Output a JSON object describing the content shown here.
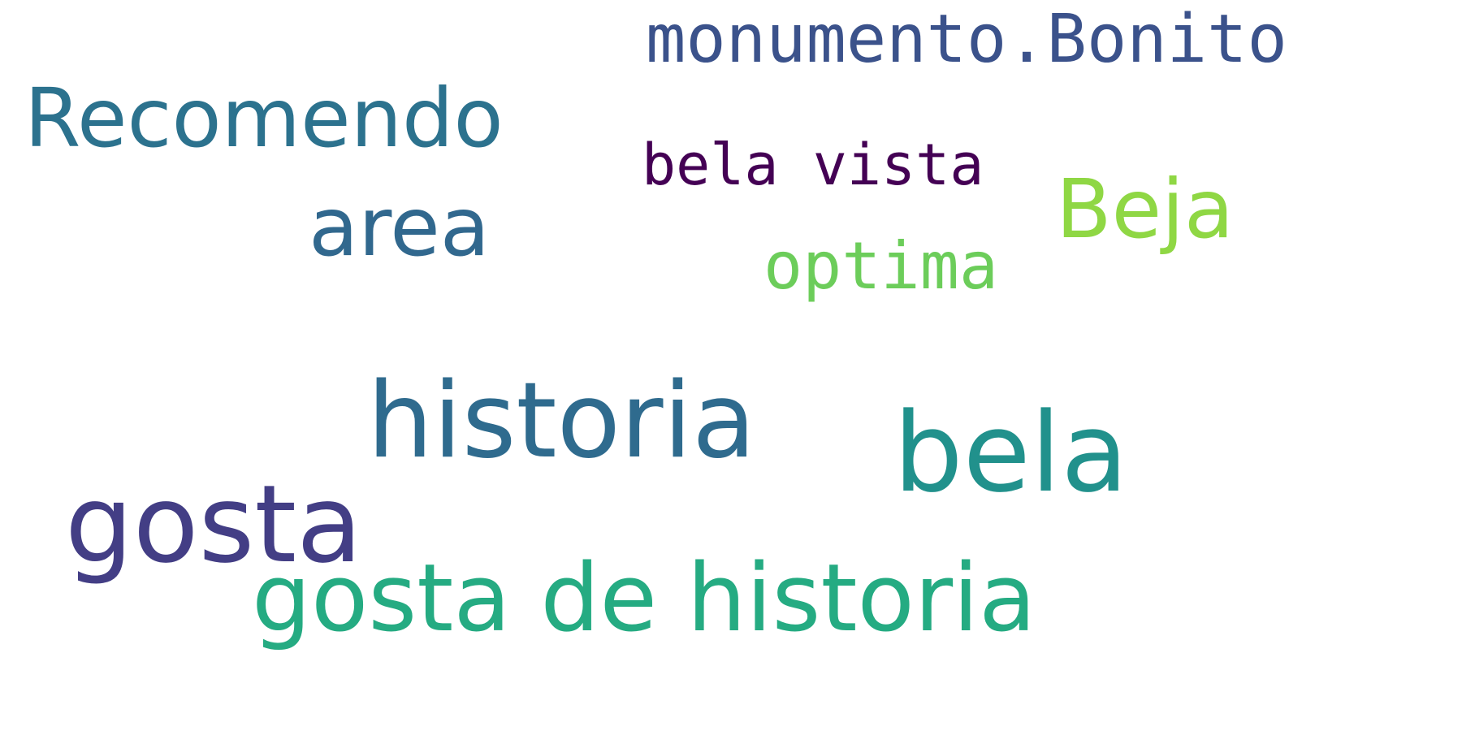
{
  "wordcloud": {
    "words": [
      {
        "id": "monumento",
        "text": "monumento.Bonito",
        "color": "#3b528b"
      },
      {
        "id": "recomendo",
        "text": "Recomendo",
        "color": "#2c728e"
      },
      {
        "id": "bela_vista",
        "text": "bela vista",
        "color": "#440154"
      },
      {
        "id": "area",
        "text": "area",
        "color": "#31688e"
      },
      {
        "id": "beja",
        "text": "Beja",
        "color": "#8fd744"
      },
      {
        "id": "optima",
        "text": "optima",
        "color": "#6ccd5a"
      },
      {
        "id": "historia",
        "text": "historia",
        "color": "#2f6b8e"
      },
      {
        "id": "bela",
        "text": "bela",
        "color": "#21918c"
      },
      {
        "id": "gosta",
        "text": "gosta",
        "color": "#433e85"
      },
      {
        "id": "gosta_de_historia",
        "text": "gosta de historia",
        "color": "#25ab82"
      }
    ]
  }
}
